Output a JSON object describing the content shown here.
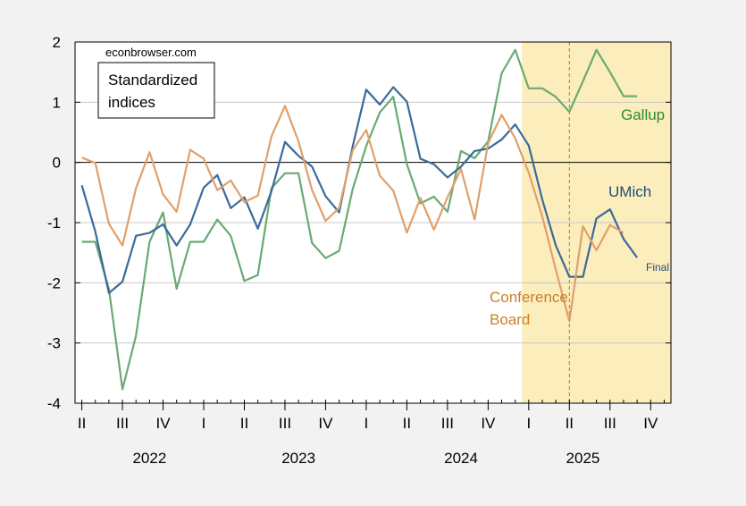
{
  "source_label": "econbrowser.com",
  "legend_box": {
    "line1": "Standardized",
    "line2": "indices"
  },
  "chart_data": {
    "type": "line",
    "title": "",
    "xlabel": "",
    "ylabel": "",
    "ylim": [
      -4,
      2
    ],
    "yticks": [
      2,
      1,
      0,
      -1,
      -2,
      -3,
      -4
    ],
    "grid": true,
    "x_months": [
      "2022-04",
      "2022-05",
      "2022-06",
      "2022-07",
      "2022-08",
      "2022-09",
      "2022-10",
      "2022-11",
      "2022-12",
      "2023-01",
      "2023-02",
      "2023-03",
      "2023-04",
      "2023-05",
      "2023-06",
      "2023-07",
      "2023-08",
      "2023-09",
      "2023-10",
      "2023-11",
      "2023-12",
      "2024-01",
      "2024-02",
      "2024-03",
      "2024-04",
      "2024-05",
      "2024-06",
      "2024-07",
      "2024-08",
      "2024-09",
      "2024-10",
      "2024-11",
      "2024-12",
      "2025-01",
      "2025-02",
      "2025-03",
      "2025-04",
      "2025-05",
      "2025-06",
      "2025-07",
      "2025-08",
      "2025-09",
      "2025-10",
      "2025-11"
    ],
    "quarter_ticks": [
      {
        "label": "II",
        "month": "2022-04"
      },
      {
        "label": "III",
        "month": "2022-07"
      },
      {
        "label": "IV",
        "month": "2022-10"
      },
      {
        "label": "I",
        "month": "2023-01"
      },
      {
        "label": "II",
        "month": "2023-04"
      },
      {
        "label": "III",
        "month": "2023-07"
      },
      {
        "label": "IV",
        "month": "2023-10"
      },
      {
        "label": "I",
        "month": "2024-01"
      },
      {
        "label": "II",
        "month": "2024-04"
      },
      {
        "label": "III",
        "month": "2024-07"
      },
      {
        "label": "IV",
        "month": "2024-10"
      },
      {
        "label": "I",
        "month": "2025-01"
      },
      {
        "label": "II",
        "month": "2025-04"
      },
      {
        "label": "III",
        "month": "2025-07"
      },
      {
        "label": "IV",
        "month": "2025-10"
      }
    ],
    "year_labels": [
      {
        "label": "2022",
        "month": "2022-09"
      },
      {
        "label": "2023",
        "month": "2023-08"
      },
      {
        "label": "2024",
        "month": "2024-08"
      },
      {
        "label": "2025",
        "month": "2025-05"
      }
    ],
    "shaded_region": {
      "from": "2025-01",
      "to": "2025-11",
      "color": "#fcedbc"
    },
    "vline": {
      "month": "2025-04",
      "color": "#d2691e"
    },
    "zero_line": true,
    "series": [
      {
        "name": "Gallup",
        "color": "#6aaa72",
        "label_color": "#2a8c2a",
        "start": "2022-04",
        "values": [
          -1.32,
          -1.32,
          -2.1,
          -3.77,
          -2.88,
          -1.32,
          -0.83,
          -2.1,
          -1.32,
          -1.32,
          -0.95,
          -1.22,
          -1.97,
          -1.87,
          -0.43,
          -0.18,
          -0.18,
          -1.34,
          -1.59,
          -1.47,
          -0.44,
          0.27,
          0.83,
          1.09,
          -0.03,
          -0.68,
          -0.57,
          -0.82,
          0.19,
          0.07,
          0.35,
          1.48,
          1.87,
          1.23,
          1.23,
          1.09,
          0.84,
          1.35,
          1.87,
          1.5,
          1.1,
          1.1
        ]
      },
      {
        "name": "UMich",
        "color": "#3a6a9a",
        "label_color": "#1f4e79",
        "start": "2022-04",
        "values": [
          -0.38,
          -1.15,
          -2.17,
          -1.98,
          -1.22,
          -1.17,
          -1.03,
          -1.38,
          -1.03,
          -0.42,
          -0.21,
          -0.76,
          -0.58,
          -1.1,
          -0.48,
          0.34,
          0.11,
          -0.07,
          -0.56,
          -0.83,
          0.27,
          1.21,
          0.96,
          1.25,
          1.01,
          0.06,
          -0.03,
          -0.25,
          -0.07,
          0.19,
          0.23,
          0.38,
          0.63,
          0.28,
          -0.62,
          -1.38,
          -1.9,
          -1.9,
          -0.93,
          -0.78,
          -1.27,
          -1.58
        ]
      },
      {
        "name": "Conference Board",
        "color": "#e0a06a",
        "label_color": "#c8822a",
        "start": "2022-04",
        "values": [
          0.08,
          -0.01,
          -1.02,
          -1.38,
          -0.43,
          0.17,
          -0.53,
          -0.82,
          0.21,
          0.06,
          -0.46,
          -0.3,
          -0.66,
          -0.55,
          0.43,
          0.94,
          0.35,
          -0.46,
          -0.97,
          -0.76,
          0.2,
          0.54,
          -0.22,
          -0.47,
          -1.17,
          -0.59,
          -1.12,
          -0.58,
          -0.11,
          -0.95,
          0.32,
          0.79,
          0.4,
          -0.17,
          -0.9,
          -1.78,
          -2.64,
          -1.06,
          -1.46,
          -1.04,
          -1.17
        ]
      }
    ],
    "annotations": [
      {
        "text": "Gallup",
        "series": "Gallup"
      },
      {
        "text": "UMich",
        "series": "UMich"
      },
      {
        "text": "Conference",
        "series": "Conference Board"
      },
      {
        "text": "Board",
        "series": "Conference Board"
      },
      {
        "text": "Final",
        "series": "UMich"
      }
    ]
  }
}
